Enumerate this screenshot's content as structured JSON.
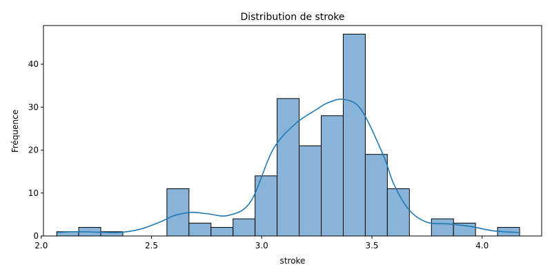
{
  "chart_data": {
    "type": "bar",
    "title": "Distribution de stroke",
    "xlabel": "stroke",
    "ylabel": "Fréquence",
    "xlim": [
      2.01,
      4.27
    ],
    "ylim": [
      0,
      49
    ],
    "xticks": [
      2.0,
      2.5,
      3.0,
      3.5,
      4.0
    ],
    "xtick_labels": [
      "2.0",
      "2.5",
      "3.0",
      "3.5",
      "4.0"
    ],
    "yticks": [
      0,
      10,
      20,
      30,
      40
    ],
    "ytick_labels": [
      "0",
      "10",
      "20",
      "30",
      "40"
    ],
    "bin_edges": [
      2.07,
      2.17,
      2.27,
      2.37,
      2.47,
      2.57,
      2.67,
      2.77,
      2.87,
      2.97,
      3.07,
      3.17,
      3.27,
      3.37,
      3.47,
      3.57,
      3.67,
      3.77,
      3.87,
      3.97,
      4.07,
      4.17
    ],
    "counts": [
      1,
      2,
      1,
      0,
      0,
      11,
      3,
      2,
      4,
      14,
      32,
      21,
      28,
      47,
      19,
      11,
      0,
      4,
      3,
      0,
      2
    ],
    "kde": {
      "x": [
        2.07,
        2.15,
        2.25,
        2.35,
        2.45,
        2.55,
        2.6,
        2.68,
        2.75,
        2.85,
        2.95,
        3.05,
        3.15,
        3.25,
        3.3,
        3.37,
        3.45,
        3.55,
        3.6,
        3.67,
        3.75,
        3.85,
        3.95,
        4.05,
        4.17
      ],
      "y": [
        0.8,
        1.0,
        0.9,
        0.8,
        1.6,
        3.5,
        4.7,
        5.5,
        5.2,
        4.8,
        8.0,
        20.0,
        26.0,
        29.5,
        31.0,
        31.8,
        29.5,
        19.0,
        12.0,
        6.0,
        3.2,
        2.8,
        2.2,
        1.2,
        0.8
      ]
    },
    "grid": false,
    "colors": {
      "bar_fill": "#89b4d9",
      "bar_edge": "#000000",
      "kde_line": "#1f77b4"
    }
  }
}
